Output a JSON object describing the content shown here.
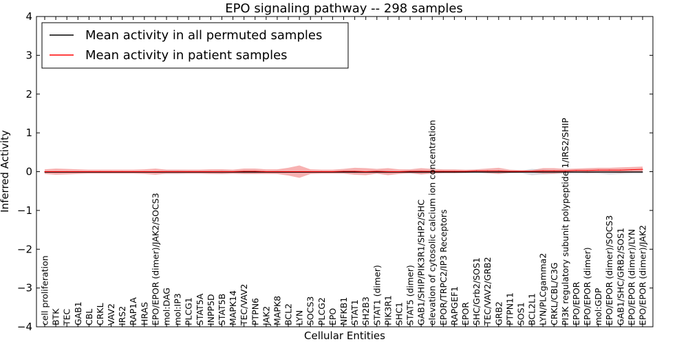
{
  "chart_data": {
    "type": "line",
    "title": "EPO signaling pathway -- 298 samples",
    "xlabel": "Cellular Entities",
    "ylabel": "Inferred Activity",
    "ylim": [
      -4,
      4
    ],
    "yticks": [
      4,
      3,
      2,
      1,
      0,
      -1,
      -2,
      -3,
      -4
    ],
    "ytick_labels": [
      "4",
      "3",
      "2",
      "1",
      "0",
      "−1",
      "−2",
      "−3",
      "−4"
    ],
    "categories": [
      "cell proliferation",
      "BTK",
      "TEC",
      "GAB1",
      "CBL",
      "CRKL",
      "VAV2",
      "IRS2",
      "RAP1A",
      "HRAS",
      "EPO/EPOR (dimer)/JAK2/SOCS3",
      "mol:DAG",
      "mol:IP3",
      "PLCG1",
      "STAT5A",
      "INPP5D",
      "STAT5B",
      "MAPK14",
      "TEC/VAV2",
      "PTPN6",
      "JAK2",
      "MAPK8",
      "BCL2",
      "LYN",
      "SOCS3",
      "PLCG2",
      "EPO",
      "NFKB1",
      "STAT1",
      "SH2B3",
      "STAT1 (dimer)",
      "PIK3R1",
      "SHC1",
      "STAT5 (dimer)",
      "GAB1/SHIP/PIK3R1/SHP2/SHC",
      "elevation of cytosolic calcium ion concentration",
      "EPOR/TRPC2/IP3 Receptors",
      "RAPGEF1",
      "EPOR",
      "SHC/Grb2/SOS1",
      "TEC/VAV2/GRB2",
      "GRB2",
      "PTPN11",
      "SOS1",
      "BCL2L1",
      "LYN/PLCgamma2",
      "CRKL/CBL/C3G",
      "PI3K regulatory subunit polypeptide 1/IRS2/SHIP",
      "EPO/EPOR",
      "EPO/EPOR (dimer)",
      "mol:GDP",
      "EPO/EPOR (dimer)/SOCS3",
      "GAB1/SHC/GRB2/SOS1",
      "EPO/EPOR (dimer)/LYN",
      "EPO/EPOR (dimer)/JAK2"
    ],
    "series": [
      {
        "name": "Mean activity in all permuted samples",
        "color": "#000000",
        "values": [
          -0.01,
          -0.01,
          -0.01,
          -0.01,
          -0.01,
          -0.01,
          -0.01,
          -0.01,
          -0.01,
          -0.01,
          -0.01,
          -0.01,
          -0.01,
          -0.01,
          -0.01,
          -0.01,
          -0.01,
          -0.01,
          -0.01,
          -0.01,
          -0.01,
          -0.01,
          -0.01,
          -0.01,
          -0.01,
          -0.01,
          -0.01,
          -0.01,
          -0.01,
          -0.01,
          -0.01,
          -0.01,
          -0.01,
          -0.01,
          -0.01,
          -0.01,
          -0.01,
          -0.01,
          -0.01,
          -0.01,
          -0.01,
          -0.01,
          -0.01,
          -0.01,
          -0.01,
          -0.01,
          -0.01,
          -0.01,
          -0.01,
          -0.01,
          -0.01,
          -0.01,
          -0.01,
          -0.01,
          -0.01
        ],
        "band": [
          0.03,
          0.03,
          0.03,
          0.03,
          0.03,
          0.03,
          0.03,
          0.03,
          0.03,
          0.03,
          0.03,
          0.05,
          0.05,
          0.04,
          0.04,
          0.04,
          0.05,
          0.04,
          0.04,
          0.04,
          0.03,
          0.04,
          0.03,
          0.03,
          0.03,
          0.03,
          0.03,
          0.03,
          0.03,
          0.03,
          0.04,
          0.04,
          0.03,
          0.04,
          0.05,
          0.03,
          0.03,
          0.03,
          0.03,
          0.03,
          0.03,
          0.03,
          0.03,
          0.03,
          0.08,
          0.06,
          0.05,
          0.04,
          0.04,
          0.04,
          0.04,
          0.06,
          0.05,
          0.04,
          0.04
        ]
      },
      {
        "name": "Mean activity in patient samples",
        "color": "#ff0000",
        "values": [
          0.0,
          0.0,
          0.0,
          0.0,
          0.0,
          0.0,
          0.0,
          0.0,
          0.0,
          0.0,
          0.0,
          0.0,
          0.0,
          0.0,
          0.0,
          0.0,
          0.0,
          0.0,
          0.01,
          0.01,
          0.0,
          0.0,
          0.0,
          0.0,
          0.0,
          0.0,
          0.0,
          0.01,
          0.01,
          0.0,
          0.01,
          0.0,
          0.0,
          0.01,
          0.01,
          0.01,
          0.01,
          0.01,
          0.01,
          0.02,
          0.02,
          0.02,
          0.01,
          0.01,
          0.01,
          0.02,
          0.02,
          0.02,
          0.03,
          0.03,
          0.04,
          0.04,
          0.04,
          0.05,
          0.06
        ],
        "band": [
          0.06,
          0.08,
          0.07,
          0.06,
          0.05,
          0.05,
          0.05,
          0.05,
          0.05,
          0.06,
          0.08,
          0.05,
          0.05,
          0.05,
          0.05,
          0.06,
          0.06,
          0.05,
          0.07,
          0.07,
          0.06,
          0.06,
          0.1,
          0.16,
          0.06,
          0.05,
          0.05,
          0.06,
          0.09,
          0.09,
          0.06,
          0.09,
          0.06,
          0.05,
          0.08,
          0.06,
          0.05,
          0.05,
          0.04,
          0.04,
          0.06,
          0.08,
          0.04,
          0.03,
          0.03,
          0.07,
          0.07,
          0.05,
          0.05,
          0.06,
          0.06,
          0.06,
          0.07,
          0.07,
          0.07
        ]
      }
    ],
    "legend_placement": "top-left"
  },
  "colors": {
    "permuted_band": "#9a9aa8",
    "patient_band": "#ee5555"
  }
}
